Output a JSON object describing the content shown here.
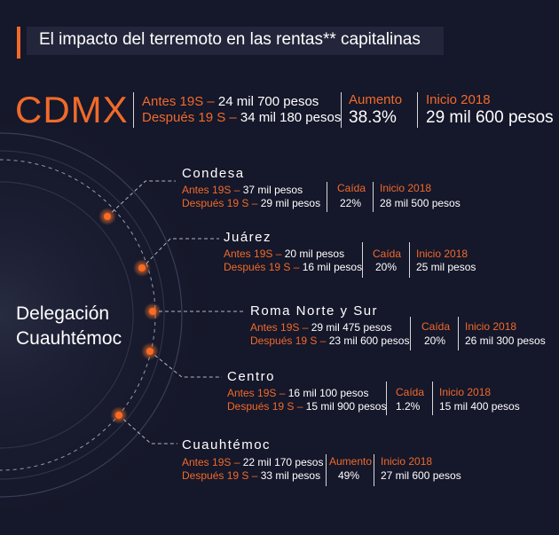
{
  "title": "El impacto del terremoto en las rentas** capitalinas",
  "cdmx": {
    "label": "CDMX",
    "antes_label": "Antes 19S –",
    "antes_value": "24 mil 700 pesos",
    "despues_label": "Después 19 S –",
    "despues_value": "34 mil 180 pesos",
    "change_label": "Aumento",
    "change_value": "38.3%",
    "inicio_label": "Inicio 2018",
    "inicio_value": "29 mil 600 pesos"
  },
  "delegacion": {
    "line1": "Delegación",
    "line2": "Cuauhtémoc"
  },
  "colonias": [
    {
      "name": "Condesa",
      "antes_label": "Antes 19S –",
      "antes_value": "37 mil pesos",
      "despues_label": "Después 19 S –",
      "despues_value": "29 mil pesos",
      "change_label": "Caída",
      "change_value": "22%",
      "inicio_label": "Inicio 2018",
      "inicio_value": "28 mil 500 pesos"
    },
    {
      "name": "Juárez",
      "antes_label": "Antes 19S –",
      "antes_value": "20 mil pesos",
      "despues_label": "Después 19 S –",
      "despues_value": "16 mil pesos",
      "change_label": "Caída",
      "change_value": "20%",
      "inicio_label": "Inicio 2018",
      "inicio_value": "25 mil pesos"
    },
    {
      "name": "Roma Norte y Sur",
      "antes_label": "Antes 19S –",
      "antes_value": "29 mil 475 pesos",
      "despues_label": "Después 19 S –",
      "despues_value": "23 mil 600 pesos",
      "change_label": "Caída",
      "change_value": "20%",
      "inicio_label": "Inicio 2018",
      "inicio_value": "26 mil 300 pesos"
    },
    {
      "name": "Centro",
      "antes_label": "Antes 19S –",
      "antes_value": "16 mil 100 pesos",
      "despues_label": "Después 19 S –",
      "despues_value": "15 mil 900 pesos",
      "change_label": "Caída",
      "change_value": "1.2%",
      "inicio_label": "Inicio 2018",
      "inicio_value": "15 mil 400 pesos"
    },
    {
      "name": "Cuauhtémoc",
      "antes_label": "Antes 19S –",
      "antes_value": "22 mil 170 pesos",
      "despues_label": "Después 19 S –",
      "despues_value": "33 mil pesos",
      "change_label": "Aumento",
      "change_value": "49%",
      "inicio_label": "Inicio 2018",
      "inicio_value": "27 mil 600 pesos"
    }
  ],
  "colors": {
    "accent": "#f06a2a",
    "background": "#15172a",
    "title_box": "#23263a"
  }
}
